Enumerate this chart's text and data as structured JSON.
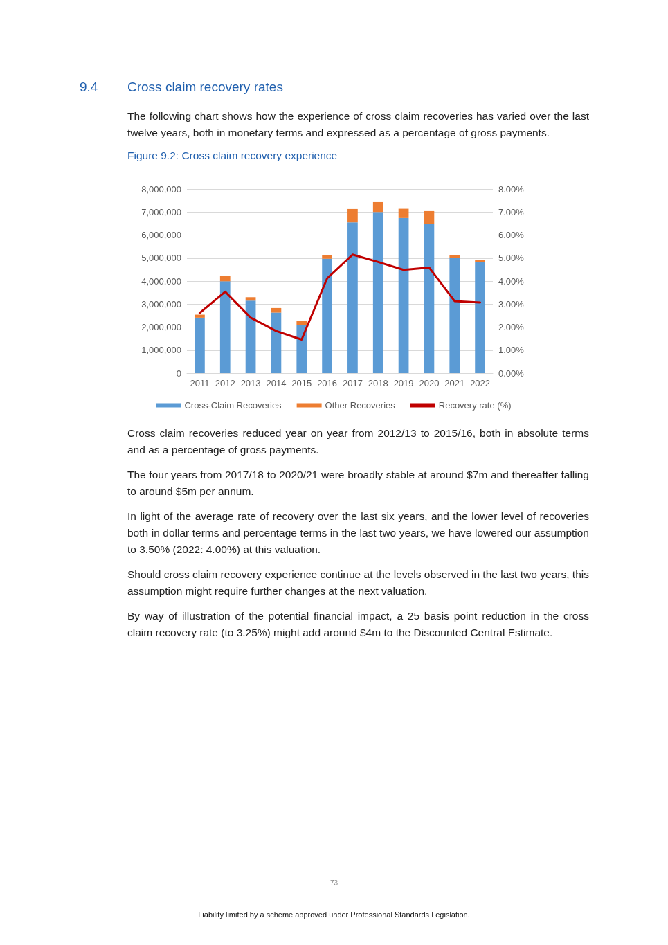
{
  "chart_data": {
    "type": "bar",
    "title": "9.4\tCross claim recovery rates",
    "subtitle": "Figure 9.2: Cross claim recovery experience",
    "categories": [
      "2011",
      "2012",
      "2013",
      "2014",
      "2015",
      "2016",
      "2017",
      "2018",
      "2019",
      "2020",
      "2021",
      "2022"
    ],
    "stacked": true,
    "series": [
      {
        "name": "Cross-Claim Recoveries",
        "color": "#5b9bd5",
        "values": [
          2410000,
          3990000,
          3150000,
          2630000,
          2100000,
          4970000,
          6550000,
          7000000,
          6740000,
          6480000,
          5020000,
          4830000
        ]
      },
      {
        "name": "Other Recoveries",
        "color": "#ed7d31",
        "values": [
          130000,
          240000,
          150000,
          200000,
          160000,
          150000,
          580000,
          430000,
          400000,
          560000,
          120000,
          100000
        ]
      },
      {
        "name": "Recovery rate (%)",
        "type": "line",
        "axis": "y2",
        "color": "#c00000",
        "values": [
          2.61,
          3.54,
          2.41,
          1.83,
          1.46,
          4.12,
          5.15,
          4.83,
          4.49,
          4.59,
          3.13,
          3.07
        ]
      }
    ],
    "ylim": [
      0,
      8000000
    ],
    "yticks": [
      {
        "value": 0,
        "label": "0"
      },
      {
        "value": 1000000,
        "label": "1,000,000"
      },
      {
        "value": 2000000,
        "label": "2,000,000"
      },
      {
        "value": 3000000,
        "label": "3,000,000"
      },
      {
        "value": 4000000,
        "label": "4,000,000"
      },
      {
        "value": 5000000,
        "label": "5,000,000"
      },
      {
        "value": 6000000,
        "label": "6,000,000"
      },
      {
        "value": 7000000,
        "label": "7,000,000"
      },
      {
        "value": 8000000,
        "label": "8,000,000"
      }
    ],
    "y2lim": [
      0,
      8
    ],
    "y2ticks": [
      {
        "value": 0,
        "label": "0.00%"
      },
      {
        "value": 1,
        "label": "1.00%"
      },
      {
        "value": 2,
        "label": "2.00%"
      },
      {
        "value": 3,
        "label": "3.00%"
      },
      {
        "value": 4,
        "label": "4.00%"
      },
      {
        "value": 5,
        "label": "5.00%"
      },
      {
        "value": 6,
        "label": "6.00%"
      },
      {
        "value": 7,
        "label": "7.00%"
      },
      {
        "value": 8,
        "label": "8.00%"
      }
    ],
    "grid": "y",
    "legend": "bottom",
    "marker": "none",
    "line_style": "solid",
    "annotations": [
      "The following chart shows how the experience of cross claim recoveries has varied over the last twelve years, both in monetary terms and expressed as a percentage of gross payments.",
      "Cross claim recoveries reduced year on year from 2012/13 to 2015/16, both in absolute terms and as a percentage of gross payments.",
      "The four years from 2017/18 to 2020/21 were broadly stable at around $7m and thereafter falling to around $5m per annum.",
      "In light of the average rate of recovery over the last six years, and the lower level of recoveries both in dollar terms and percentage terms in the last two years, we have lowered our assumption to 3.50% (2022: 4.00%) at this valuation.",
      "Should cross claim recovery experience continue at the levels observed in the last two years, this assumption might require further changes at the next valuation.",
      "By way of illustration of the potential financial impact, a 25 basis point reduction in the cross claim recovery rate (to 3.25%) might add around $4m to the Discounted Central Estimate.",
      "73",
      "Liability limited by a scheme approved under Professional Standards Legislation."
    ]
  }
}
